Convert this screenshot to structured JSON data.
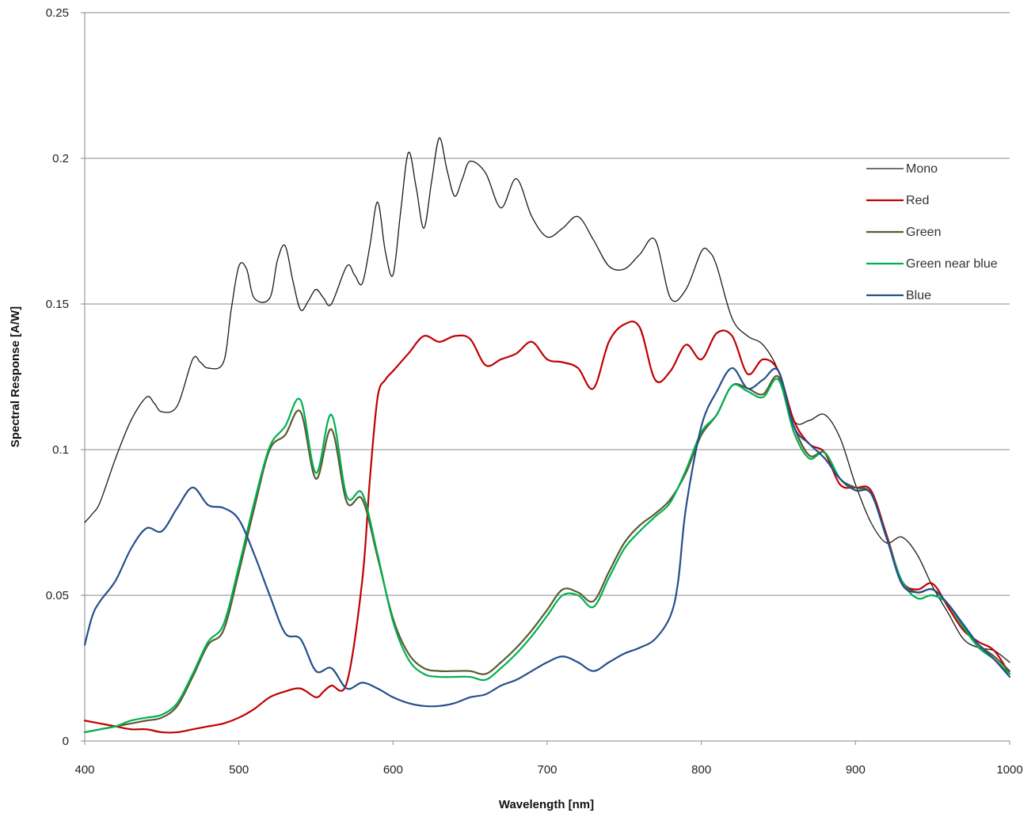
{
  "chart_data": {
    "type": "line",
    "title": "",
    "xlabel": "Wavelength [nm]",
    "ylabel": "Spectral Response [A/W]",
    "xlim": [
      400,
      1000
    ],
    "ylim": [
      0,
      0.25
    ],
    "x_ticks": [
      400,
      500,
      600,
      700,
      800,
      900,
      1000
    ],
    "x_tick_labels": [
      "400",
      "500",
      "600",
      "700",
      "800",
      "900",
      "1000"
    ],
    "y_ticks": [
      0,
      0.05,
      0.1,
      0.15,
      0.2,
      0.25
    ],
    "y_tick_labels": [
      "0",
      "0.05",
      "0.1",
      "0.15",
      "0.2",
      "0.25"
    ],
    "grid": "horizontal",
    "legend_position": "right",
    "series": [
      {
        "name": "Mono",
        "color": "#1a1a1a",
        "width": 1.3,
        "x": [
          400,
          405,
          410,
          420,
          430,
          440,
          445,
          450,
          460,
          470,
          475,
          480,
          490,
          495,
          500,
          505,
          510,
          520,
          525,
          530,
          535,
          540,
          545,
          550,
          555,
          560,
          570,
          575,
          580,
          585,
          590,
          595,
          600,
          605,
          610,
          615,
          620,
          625,
          630,
          635,
          640,
          645,
          650,
          660,
          670,
          680,
          690,
          700,
          710,
          720,
          730,
          740,
          750,
          760,
          770,
          780,
          790,
          800,
          805,
          810,
          820,
          830,
          840,
          850,
          860,
          870,
          880,
          890,
          900,
          910,
          920,
          930,
          940,
          950,
          960,
          970,
          980,
          990,
          1000
        ],
        "values": [
          0.075,
          0.078,
          0.082,
          0.097,
          0.11,
          0.118,
          0.116,
          0.113,
          0.115,
          0.131,
          0.13,
          0.128,
          0.13,
          0.148,
          0.163,
          0.162,
          0.152,
          0.152,
          0.165,
          0.17,
          0.158,
          0.148,
          0.151,
          0.155,
          0.152,
          0.15,
          0.163,
          0.16,
          0.157,
          0.17,
          0.185,
          0.168,
          0.16,
          0.182,
          0.202,
          0.19,
          0.176,
          0.192,
          0.207,
          0.196,
          0.187,
          0.193,
          0.199,
          0.195,
          0.183,
          0.193,
          0.18,
          0.173,
          0.176,
          0.18,
          0.172,
          0.163,
          0.162,
          0.167,
          0.172,
          0.152,
          0.155,
          0.168,
          0.168,
          0.163,
          0.145,
          0.139,
          0.136,
          0.127,
          0.11,
          0.11,
          0.112,
          0.104,
          0.088,
          0.075,
          0.068,
          0.07,
          0.064,
          0.053,
          0.044,
          0.035,
          0.032,
          0.031,
          0.027
        ]
      },
      {
        "name": "Red",
        "color": "#c00000",
        "width": 2.2,
        "x": [
          400,
          410,
          420,
          430,
          440,
          450,
          460,
          470,
          480,
          490,
          500,
          510,
          520,
          530,
          540,
          550,
          555,
          560,
          570,
          580,
          585,
          590,
          595,
          600,
          610,
          620,
          630,
          640,
          650,
          660,
          670,
          680,
          690,
          700,
          710,
          720,
          730,
          740,
          750,
          760,
          770,
          780,
          790,
          800,
          810,
          820,
          830,
          840,
          850,
          860,
          870,
          880,
          890,
          900,
          910,
          920,
          930,
          940,
          950,
          960,
          970,
          980,
          990,
          1000
        ],
        "values": [
          0.007,
          0.006,
          0.005,
          0.004,
          0.004,
          0.003,
          0.003,
          0.004,
          0.005,
          0.006,
          0.008,
          0.011,
          0.015,
          0.017,
          0.018,
          0.015,
          0.017,
          0.019,
          0.02,
          0.055,
          0.09,
          0.118,
          0.124,
          0.127,
          0.133,
          0.139,
          0.137,
          0.139,
          0.138,
          0.129,
          0.131,
          0.133,
          0.137,
          0.131,
          0.13,
          0.128,
          0.121,
          0.137,
          0.143,
          0.142,
          0.124,
          0.127,
          0.136,
          0.131,
          0.14,
          0.139,
          0.126,
          0.131,
          0.127,
          0.11,
          0.102,
          0.099,
          0.088,
          0.087,
          0.086,
          0.071,
          0.055,
          0.052,
          0.054,
          0.046,
          0.038,
          0.034,
          0.031,
          0.023
        ]
      },
      {
        "name": "Green",
        "color": "#5a5a32",
        "width": 2.2,
        "x": [
          400,
          410,
          420,
          430,
          440,
          450,
          460,
          470,
          480,
          490,
          500,
          510,
          520,
          530,
          540,
          550,
          560,
          570,
          580,
          590,
          600,
          610,
          620,
          630,
          640,
          650,
          660,
          670,
          680,
          690,
          700,
          710,
          720,
          730,
          740,
          750,
          760,
          770,
          780,
          790,
          800,
          810,
          820,
          830,
          840,
          850,
          860,
          870,
          880,
          890,
          900,
          910,
          920,
          930,
          940,
          950,
          960,
          970,
          980,
          990,
          1000
        ],
        "values": [
          0.003,
          0.004,
          0.005,
          0.006,
          0.007,
          0.008,
          0.012,
          0.022,
          0.033,
          0.038,
          0.058,
          0.08,
          0.1,
          0.105,
          0.113,
          0.09,
          0.107,
          0.082,
          0.083,
          0.063,
          0.042,
          0.03,
          0.025,
          0.024,
          0.024,
          0.024,
          0.023,
          0.027,
          0.032,
          0.038,
          0.045,
          0.052,
          0.051,
          0.048,
          0.058,
          0.068,
          0.074,
          0.078,
          0.083,
          0.092,
          0.105,
          0.112,
          0.122,
          0.121,
          0.119,
          0.125,
          0.108,
          0.098,
          0.099,
          0.09,
          0.087,
          0.085,
          0.07,
          0.055,
          0.051,
          0.052,
          0.047,
          0.039,
          0.033,
          0.029,
          0.024
        ]
      },
      {
        "name": "Green near blue",
        "color": "#00b050",
        "width": 2.2,
        "x": [
          400,
          410,
          420,
          430,
          440,
          450,
          460,
          470,
          480,
          490,
          500,
          510,
          520,
          530,
          540,
          550,
          560,
          570,
          580,
          590,
          600,
          610,
          620,
          630,
          640,
          650,
          660,
          670,
          680,
          690,
          700,
          710,
          720,
          730,
          740,
          750,
          760,
          770,
          780,
          790,
          800,
          810,
          820,
          830,
          840,
          850,
          860,
          870,
          880,
          890,
          900,
          910,
          920,
          930,
          940,
          950,
          960,
          970,
          980,
          990,
          1000
        ],
        "values": [
          0.003,
          0.004,
          0.005,
          0.007,
          0.008,
          0.009,
          0.013,
          0.023,
          0.034,
          0.04,
          0.06,
          0.082,
          0.101,
          0.108,
          0.117,
          0.092,
          0.112,
          0.084,
          0.085,
          0.064,
          0.041,
          0.028,
          0.023,
          0.022,
          0.022,
          0.022,
          0.021,
          0.025,
          0.03,
          0.036,
          0.043,
          0.05,
          0.05,
          0.046,
          0.056,
          0.066,
          0.072,
          0.077,
          0.082,
          0.093,
          0.106,
          0.112,
          0.122,
          0.12,
          0.118,
          0.124,
          0.106,
          0.097,
          0.099,
          0.09,
          0.086,
          0.085,
          0.07,
          0.055,
          0.049,
          0.05,
          0.047,
          0.039,
          0.032,
          0.028,
          0.023
        ]
      },
      {
        "name": "Blue",
        "color": "#254f8c",
        "width": 2.2,
        "x": [
          400,
          405,
          410,
          420,
          430,
          440,
          450,
          460,
          470,
          480,
          490,
          500,
          510,
          520,
          530,
          540,
          550,
          560,
          570,
          580,
          590,
          600,
          610,
          620,
          630,
          640,
          650,
          660,
          670,
          680,
          690,
          700,
          710,
          720,
          730,
          740,
          750,
          760,
          770,
          780,
          785,
          790,
          800,
          810,
          820,
          830,
          840,
          850,
          860,
          870,
          880,
          890,
          900,
          910,
          920,
          930,
          940,
          950,
          960,
          970,
          980,
          990,
          1000
        ],
        "values": [
          0.033,
          0.043,
          0.048,
          0.055,
          0.066,
          0.073,
          0.072,
          0.08,
          0.087,
          0.081,
          0.08,
          0.076,
          0.064,
          0.05,
          0.037,
          0.035,
          0.024,
          0.025,
          0.018,
          0.02,
          0.018,
          0.015,
          0.013,
          0.012,
          0.012,
          0.013,
          0.015,
          0.016,
          0.019,
          0.021,
          0.024,
          0.027,
          0.029,
          0.027,
          0.024,
          0.027,
          0.03,
          0.032,
          0.035,
          0.043,
          0.055,
          0.08,
          0.108,
          0.12,
          0.128,
          0.121,
          0.124,
          0.127,
          0.108,
          0.102,
          0.097,
          0.09,
          0.086,
          0.085,
          0.07,
          0.054,
          0.051,
          0.052,
          0.047,
          0.04,
          0.033,
          0.028,
          0.022
        ]
      }
    ]
  }
}
